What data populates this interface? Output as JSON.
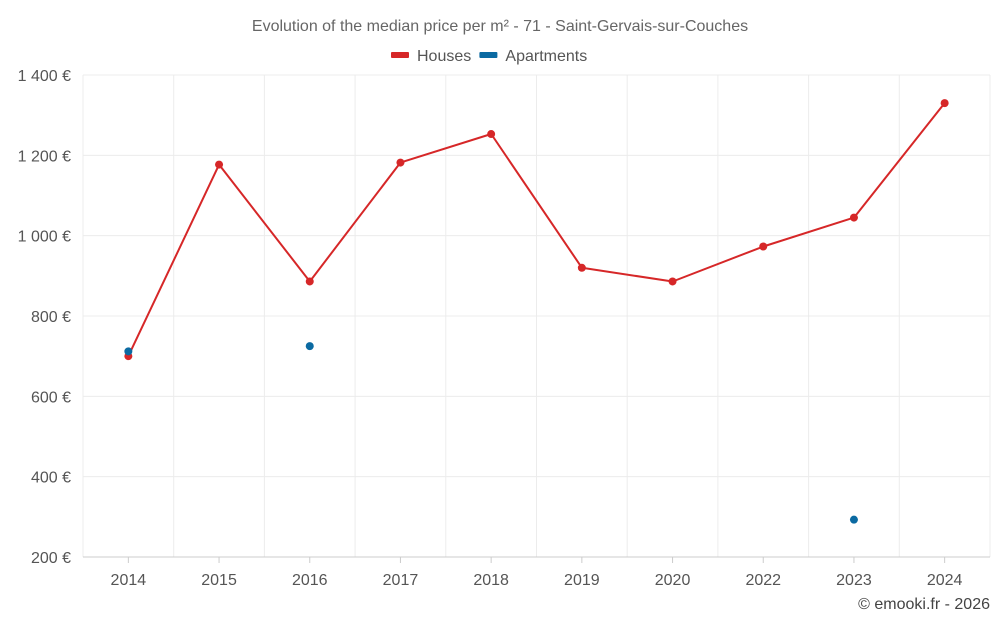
{
  "chart_data": {
    "type": "line",
    "title": "Evolution of the median price per m² - 71 - Saint-Gervais-sur-Couches",
    "categories": [
      "2014",
      "2015",
      "2016",
      "2017",
      "2018",
      "2019",
      "2020",
      "2022",
      "2023",
      "2024"
    ],
    "ylim": [
      200,
      1400
    ],
    "yticks": [
      200,
      400,
      600,
      800,
      1000,
      1200,
      1400
    ],
    "ytick_labels": [
      "200 €",
      "400 €",
      "600 €",
      "800 €",
      "1 000 €",
      "1 200 €",
      "1 400 €"
    ],
    "grid": true,
    "legend_position": "top-center",
    "series": [
      {
        "name": "Houses",
        "color": "#d62728",
        "line": true,
        "values": [
          700,
          1177,
          886,
          1182,
          1253,
          920,
          886,
          973,
          1045,
          1330
        ]
      },
      {
        "name": "Apartments",
        "color": "#0b6aa2",
        "line": false,
        "values": [
          712,
          null,
          725,
          null,
          null,
          null,
          null,
          null,
          293,
          null
        ]
      }
    ]
  },
  "credit": "© emooki.fr - 2026"
}
